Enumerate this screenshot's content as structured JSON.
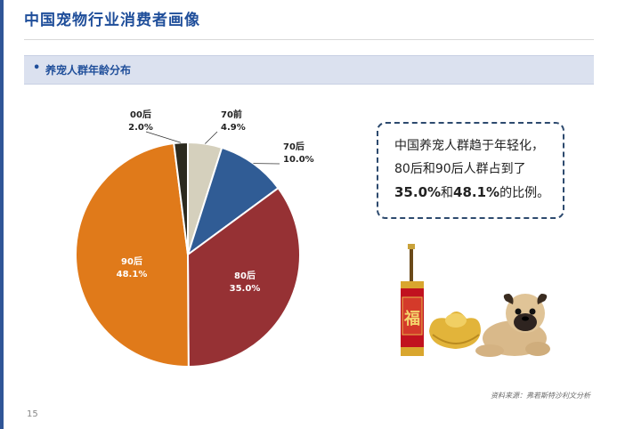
{
  "page": {
    "title": "中国宠物行业消费者画像",
    "section_bullet": "•",
    "section_label": "养宠人群年龄分布",
    "callout": {
      "line1": "中国养宠人群趋于年轻化，",
      "line2": "80后和90后人群占到了",
      "value1": "35.0%",
      "and": "和",
      "value2": "48.1%",
      "tail": "的比例。"
    },
    "illustration": {
      "fu_char": "福"
    },
    "source": "资料来源：弗若斯特沙利文分析",
    "page_number": "15"
  },
  "chart_data": {
    "type": "pie",
    "title": "",
    "unit": "%",
    "slices": [
      {
        "label": "70前",
        "value": 4.9,
        "display": "4.9%",
        "color": "#d5d0bd"
      },
      {
        "label": "70后",
        "value": 10.0,
        "display": "10.0%",
        "color": "#305c95"
      },
      {
        "label": "80后",
        "value": 35.0,
        "display": "35.0%",
        "color": "#963134"
      },
      {
        "label": "90后",
        "value": 48.1,
        "display": "48.1%",
        "color": "#e07a1a"
      },
      {
        "label": "00后",
        "value": 2.0,
        "display": "2.0%",
        "color": "#2c2a1f"
      }
    ]
  }
}
